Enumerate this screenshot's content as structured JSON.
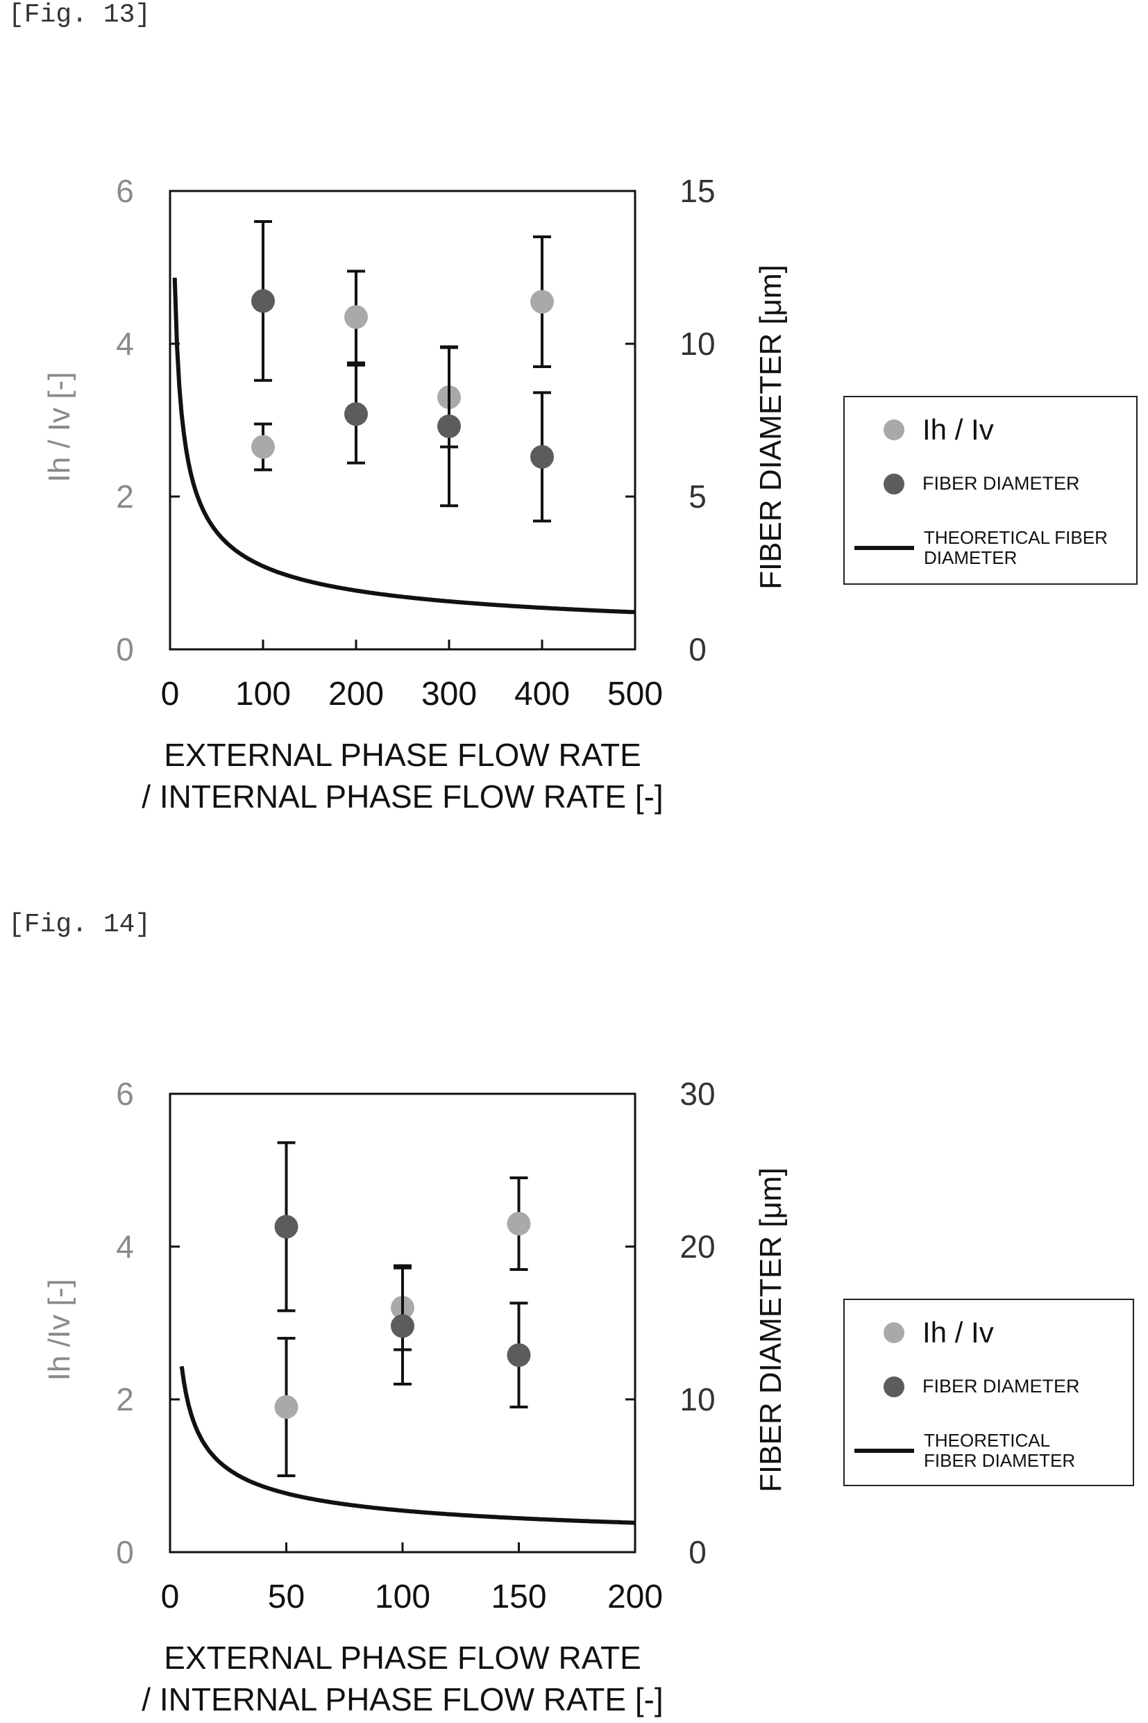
{
  "figures": [
    {
      "label": "[Fig. 13]"
    },
    {
      "label": "[Fig. 14]"
    }
  ],
  "colors": {
    "ih_iv": "#a9a9a9",
    "fiber": "#5c5c5c",
    "line": "#111111",
    "left_axis": "#8a8a8a"
  },
  "chart_data": [
    {
      "type": "scatter",
      "xlabel_line1": "EXTERNAL PHASE FLOW RATE",
      "xlabel_line2": "/ INTERNAL PHASE FLOW RATE [-]",
      "ylabel_left": "Ih / Iv [-]",
      "ylabel_right": "FIBER DIAMETER [μm]",
      "xlim": [
        0,
        500
      ],
      "ylim_left": [
        0,
        6
      ],
      "ylim_right": [
        0,
        15
      ],
      "xticks": [
        "0",
        "100",
        "200",
        "300",
        "400",
        "500"
      ],
      "yticks_left": [
        "0",
        "2",
        "4",
        "6"
      ],
      "yticks_right": [
        "0",
        "5",
        "10",
        "15"
      ],
      "grid": false,
      "legend_position": "right",
      "legend": {
        "ih_iv": "Ih / Iv",
        "fiber": "FIBER DIAMETER",
        "theory": "THEORETICAL FIBER DIAMETER"
      },
      "series": [
        {
          "name": "Ih / Iv",
          "axis": "left",
          "x": [
            100,
            200,
            300,
            400
          ],
          "y": [
            2.65,
            4.35,
            3.3,
            4.55
          ],
          "err": [
            0.3,
            0.6,
            0.65,
            0.85
          ]
        },
        {
          "name": "FIBER DIAMETER",
          "axis": "right",
          "x": [
            100,
            200,
            300,
            400
          ],
          "y": [
            11.4,
            7.7,
            7.3,
            6.3
          ],
          "err": [
            2.6,
            1.6,
            2.6,
            2.1
          ]
        }
      ],
      "theory_curve": {
        "name": "THEORETICAL FIBER DIAMETER",
        "axis": "right",
        "x_start": 5,
        "x_end": 500,
        "coef": 27.2,
        "power": 0.5
      }
    },
    {
      "type": "scatter",
      "xlabel_line1": "EXTERNAL PHASE FLOW RATE",
      "xlabel_line2": "/ INTERNAL PHASE FLOW RATE [-]",
      "ylabel_left": "Ih /Iv [-]",
      "ylabel_right": "FIBER DIAMETER [μm]",
      "xlim": [
        0,
        200
      ],
      "ylim_left": [
        0,
        6
      ],
      "ylim_right": [
        0,
        30
      ],
      "xticks": [
        "0",
        "50",
        "100",
        "150",
        "200"
      ],
      "yticks_left": [
        "0",
        "2",
        "4",
        "6"
      ],
      "yticks_right": [
        "0",
        "10",
        "20",
        "30"
      ],
      "grid": false,
      "legend_position": "right",
      "legend": {
        "ih_iv": "Ih / Iv",
        "fiber": "FIBER DIAMETER",
        "theory": "THEORETICAL FIBER DIAMETER"
      },
      "series": [
        {
          "name": "Ih / Iv",
          "axis": "left",
          "x": [
            50,
            100,
            150
          ],
          "y": [
            1.9,
            3.2,
            4.3
          ],
          "err": [
            0.9,
            0.55,
            0.6
          ]
        },
        {
          "name": "FIBER DIAMETER",
          "axis": "right",
          "x": [
            50,
            100,
            150
          ],
          "y": [
            21.3,
            14.8,
            12.9
          ],
          "err": [
            5.5,
            3.8,
            3.4
          ]
        }
      ],
      "theory_curve": {
        "name": "THEORETICAL FIBER DIAMETER",
        "axis": "right",
        "x_start": 5,
        "x_end": 200,
        "coef": 27.2,
        "power": 0.5
      }
    }
  ]
}
